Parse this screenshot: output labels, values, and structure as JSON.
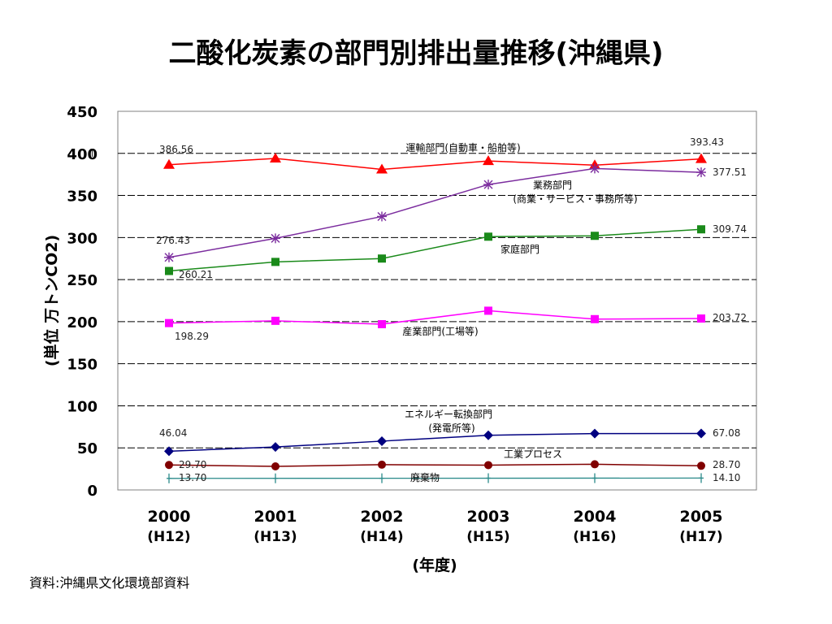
{
  "slide": {
    "title": "二酸化炭素の部門別排出量推移(沖縄県)",
    "source": "資料:沖縄県文化環境部資料"
  },
  "chart_data": {
    "type": "line",
    "ylabel": "(単位 万トンCO2)",
    "xlabel": "(年度)",
    "ylim": [
      0,
      450
    ],
    "yticks": [
      0,
      50,
      100,
      150,
      200,
      250,
      300,
      350,
      400,
      450
    ],
    "grid": "horizontal dashed",
    "categories": [
      "2000",
      "2001",
      "2002",
      "2003",
      "2004",
      "2005"
    ],
    "category_sublabels": [
      "(H12)",
      "(H13)",
      "(H14)",
      "(H15)",
      "(H16)",
      "(H17)"
    ],
    "series": [
      {
        "name": "運輸部門(自動車・船舶等)",
        "color": "#ff0000",
        "marker": "triangle",
        "values": [
          386.56,
          394,
          381,
          391,
          386,
          393.43
        ],
        "first_label": "386.56",
        "last_label": "393.43"
      },
      {
        "name": "業務部門",
        "name_line2": "(商業・サービス・事務所等)",
        "color": "#7b2c9e",
        "marker": "asterisk",
        "values": [
          276.43,
          299,
          325,
          363,
          382,
          377.51
        ],
        "first_label": "276.43",
        "last_label": "377.51"
      },
      {
        "name": "家庭部門",
        "color": "#1a8a1a",
        "marker": "square",
        "values": [
          260.21,
          271,
          275,
          301,
          302,
          309.74
        ],
        "first_label": "260.21",
        "last_label": "309.74"
      },
      {
        "name": "産業部門(工場等)",
        "color": "#ff00ff",
        "marker": "square",
        "values": [
          198.29,
          201,
          197,
          213,
          203,
          203.72
        ],
        "first_label": "198.29",
        "last_label": "203.72"
      },
      {
        "name": "エネルギー転換部門",
        "name_line2": "(発電所等)",
        "color": "#000080",
        "marker": "diamond",
        "values": [
          46.04,
          51,
          58,
          65,
          67,
          67.08
        ],
        "first_label": "46.04",
        "last_label": "67.08"
      },
      {
        "name": "工業プロセス",
        "color": "#800000",
        "marker": "circle",
        "values": [
          29.7,
          28,
          30,
          29.5,
          30.5,
          28.7
        ],
        "first_label": "29.70",
        "last_label": "28.70"
      },
      {
        "name": "廃棄物",
        "color": "#2a8a8a",
        "marker": "plus",
        "values": [
          13.7,
          13.8,
          13.9,
          14.0,
          14.0,
          14.1
        ],
        "first_label": "13.70",
        "last_label": "14.10"
      }
    ]
  }
}
